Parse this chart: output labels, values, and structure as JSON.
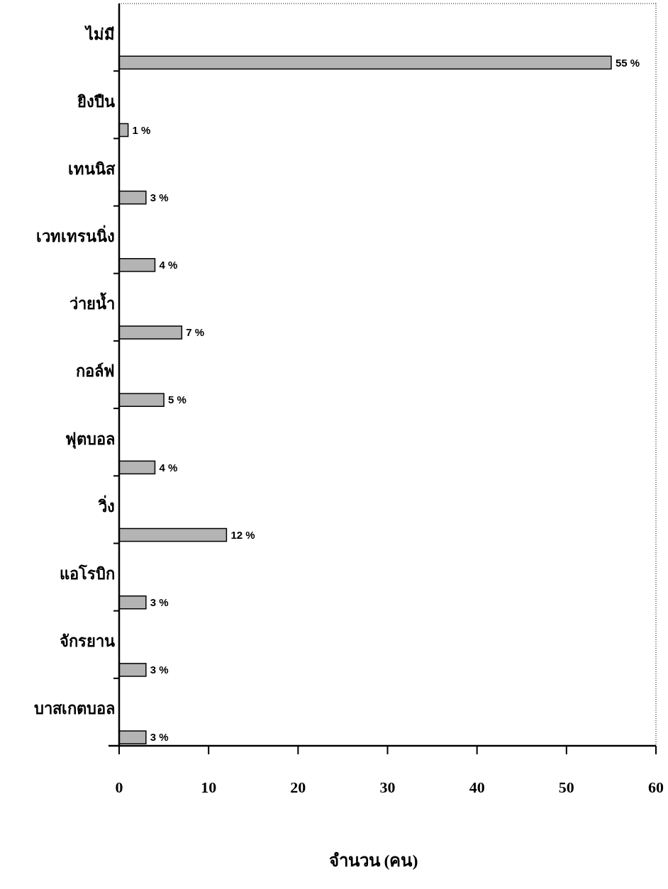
{
  "chart_data": {
    "type": "bar",
    "orientation": "horizontal",
    "xlabel": "จำนวน (คน)",
    "categories": [
      "ไม่มี",
      "ยิงปืน",
      "เทนนิส",
      "เวทเทรนนิ่ง",
      "ว่ายน้ำ",
      "กอล์ฟ",
      "ฟุตบอล",
      "วิ่ง",
      "แอโรบิก",
      "จักรยาน",
      "บาสเกตบอล"
    ],
    "values": [
      55,
      1,
      3,
      4,
      7,
      5,
      4,
      12,
      3,
      3,
      3
    ],
    "value_labels": [
      "55 %",
      "1 %",
      "3 %",
      "4 %",
      "7 %",
      "5 %",
      "4 %",
      "12 %",
      "3 %",
      "3 %",
      "3 %"
    ],
    "color": "#b4b4b4",
    "xlim": [
      0,
      60
    ],
    "xticks": [
      0,
      10,
      20,
      30,
      40,
      50,
      60
    ],
    "grid": false
  }
}
